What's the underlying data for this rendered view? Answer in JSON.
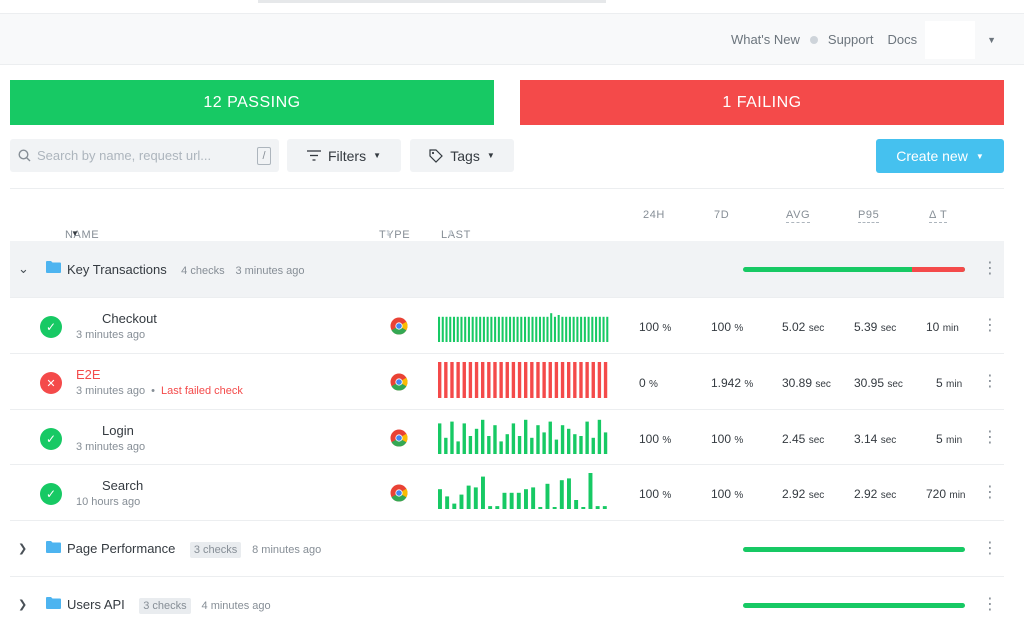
{
  "header": {
    "links": [
      "What's New",
      "Support",
      "Docs"
    ]
  },
  "summary": {
    "passing_label": "12 PASSING",
    "failing_label": "1 FAILING",
    "colors": {
      "pass": "#17c964",
      "fail": "#f44a4a",
      "accent": "#45c1ef"
    }
  },
  "toolbar": {
    "search_placeholder": "Search by name, request url...",
    "slash_hint": "/",
    "filters_label": "Filters",
    "tags_label": "Tags",
    "create_label": "Create new"
  },
  "columns": {
    "name": "NAME",
    "type": "TYPE",
    "last_results": "LAST RESULTS",
    "h24": "24H",
    "d7": "7D",
    "avg": "AVG",
    "p95": "P95",
    "delta_t": "Δ T"
  },
  "groups": [
    {
      "name": "Key Transactions",
      "count": "4 checks",
      "time": "3 minutes ago",
      "expanded": true,
      "pass_fraction": 0.76,
      "icon": "folder-icon"
    },
    {
      "name": "Page Performance",
      "count": "3 checks",
      "time": "8 minutes ago",
      "expanded": false,
      "pass_fraction": 1.0,
      "icon": "folder-icon"
    },
    {
      "name": "Users API",
      "count": "3 checks",
      "time": "4 minutes ago",
      "expanded": false,
      "pass_fraction": 1.0,
      "icon": "folder-icon"
    }
  ],
  "checks": [
    {
      "name": "Checkout",
      "status": "passing",
      "time": "3 minutes ago",
      "note": "",
      "type_icon": "chrome-icon",
      "h24": "100",
      "d7": "100",
      "avg": "5.02",
      "p95": "5.39",
      "delta": "10",
      "results": [
        0.7,
        0.7,
        0.7,
        0.7,
        0.7,
        0.7,
        0.7,
        0.7,
        0.7,
        0.7,
        0.7,
        0.7,
        0.7,
        0.7,
        0.7,
        0.7,
        0.7,
        0.7,
        0.7,
        0.7,
        0.7,
        0.7,
        0.7,
        0.7,
        0.7,
        0.7,
        0.7,
        0.7,
        0.7,
        0.7,
        0.8,
        0.7,
        0.75,
        0.7,
        0.7,
        0.7,
        0.7,
        0.7,
        0.7,
        0.7,
        0.7,
        0.7,
        0.7,
        0.7,
        0.7,
        0.7
      ],
      "result_color": "#17c964"
    },
    {
      "name": "E2E",
      "status": "failing",
      "time": "3 minutes ago",
      "note": "Last failed check",
      "type_icon": "chrome-icon",
      "h24": "0",
      "d7": "1.942",
      "avg": "30.89",
      "p95": "30.95",
      "delta": "5",
      "results": [
        1,
        1,
        1,
        1,
        1,
        1,
        1,
        1,
        1,
        1,
        1,
        1,
        1,
        1,
        1,
        1,
        1,
        1,
        1,
        1,
        1,
        1,
        1,
        1,
        1,
        1,
        1,
        1
      ],
      "result_color": "#f44a4a"
    },
    {
      "name": "Login",
      "status": "passing",
      "time": "3 minutes ago",
      "note": "",
      "type_icon": "chrome-icon",
      "h24": "100",
      "d7": "100",
      "avg": "2.45",
      "p95": "3.14",
      "delta": "5",
      "results": [
        0.85,
        0.45,
        0.9,
        0.35,
        0.85,
        0.5,
        0.7,
        0.95,
        0.5,
        0.8,
        0.35,
        0.55,
        0.85,
        0.5,
        0.95,
        0.45,
        0.8,
        0.6,
        0.9,
        0.4,
        0.8,
        0.7,
        0.55,
        0.5,
        0.9,
        0.45,
        0.95,
        0.6
      ],
      "result_color": "#17c964"
    },
    {
      "name": "Search",
      "status": "passing",
      "time": "10 hours ago",
      "note": "",
      "type_icon": "chrome-icon",
      "h24": "100",
      "d7": "100",
      "avg": "2.92",
      "p95": "2.92",
      "delta": "720",
      "results": [
        0.55,
        0.35,
        0.15,
        0.4,
        0.65,
        0.6,
        0.9,
        0.08,
        0.08,
        0.45,
        0.45,
        0.45,
        0.55,
        0.6,
        0.05,
        0.7,
        0.05,
        0.8,
        0.85,
        0.25,
        0.05,
        1,
        0.08,
        0.08
      ],
      "result_color": "#17c964"
    }
  ],
  "units": {
    "pct": "%",
    "sec": "sec",
    "min": "min"
  }
}
